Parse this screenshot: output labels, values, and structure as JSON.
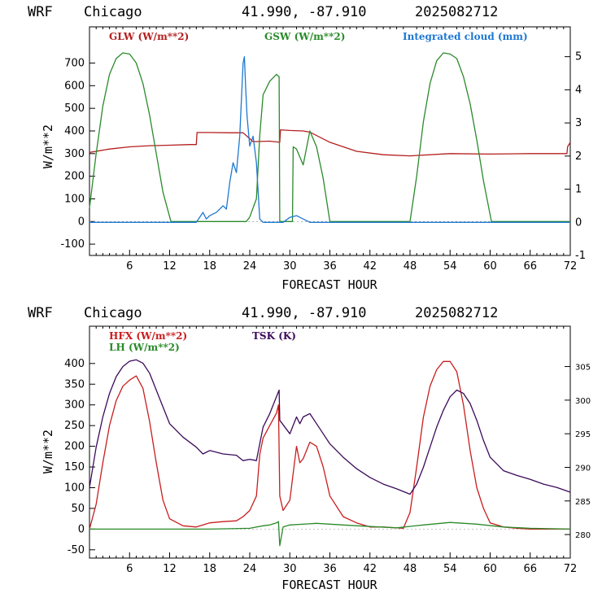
{
  "panel1": {
    "header_model": "WRF",
    "header_city": "Chicago",
    "header_coords": "41.990, -87.910",
    "header_date": "2025082712",
    "legend": {
      "glw": "GLW (W/m**2)",
      "gsw": "GSW (W/m**2)",
      "cloud": "Integrated cloud (mm)"
    },
    "colors": {
      "glw": "#b41e1e",
      "gsw": "#2a8a2a",
      "cloud": "#1e78d2"
    }
  },
  "panel2": {
    "header_model": "WRF",
    "header_city": "Chicago",
    "header_coords": "41.990, -87.910",
    "header_date": "2025082712",
    "legend": {
      "hfx": "HFX (W/m**2)",
      "lh": "LH  (W/m**2)",
      "tsk": "TSK (K)"
    },
    "colors": {
      "hfx": "#c81e1e",
      "lh": "#2a8a2a",
      "tsk": "#3c0a5a"
    }
  },
  "chart_data": [
    {
      "type": "line",
      "xlabel": "FORECAST HOUR",
      "ylabel": "W/m**2",
      "xlim": [
        0,
        72
      ],
      "ylim": [
        -150,
        860
      ],
      "y2lim": [
        -1,
        5.9
      ],
      "xticks": [
        6,
        12,
        18,
        24,
        30,
        36,
        42,
        48,
        54,
        60,
        66,
        72
      ],
      "yticks": [
        -100,
        0,
        100,
        200,
        300,
        400,
        500,
        600,
        700
      ],
      "y2ticks": [
        -1,
        0,
        1,
        2,
        3,
        4,
        5
      ],
      "series": [
        {
          "name": "GLW (W/m**2)",
          "axis": "left",
          "x": [
            0,
            3,
            6,
            9,
            12,
            15,
            16,
            16.1,
            18,
            21,
            23,
            24.5,
            27,
            28.5,
            28.6,
            30,
            32,
            33,
            36,
            40,
            44,
            48,
            54,
            60,
            66,
            71.5,
            71.6,
            72
          ],
          "y": [
            305,
            320,
            330,
            335,
            337,
            340,
            340,
            393,
            393,
            392,
            392,
            353,
            355,
            350,
            405,
            402,
            400,
            395,
            350,
            310,
            295,
            290,
            300,
            298,
            300,
            300,
            330,
            350
          ]
        },
        {
          "name": "GSW (W/m**2)",
          "axis": "left",
          "x": [
            0,
            1,
            2,
            3,
            4,
            5,
            6,
            7,
            8,
            9,
            10,
            11,
            12.2,
            23.5,
            24,
            25,
            25.5,
            26,
            27,
            28,
            28.4,
            28.5,
            29.5,
            30.4,
            30.5,
            31,
            32,
            33,
            34,
            35,
            36,
            48,
            49,
            50,
            51,
            52,
            53,
            54,
            55,
            56,
            57,
            58,
            59,
            60.2,
            72
          ],
          "y": [
            60,
            300,
            510,
            650,
            720,
            745,
            740,
            700,
            610,
            470,
            300,
            130,
            0,
            0,
            20,
            100,
            380,
            560,
            620,
            650,
            640,
            0,
            0,
            0,
            330,
            320,
            250,
            400,
            330,
            190,
            0,
            0,
            200,
            440,
            610,
            710,
            745,
            740,
            720,
            640,
            520,
            360,
            180,
            0,
            0
          ]
        },
        {
          "name": "Integrated cloud (mm)",
          "axis": "right",
          "x": [
            0,
            16,
            17,
            17.5,
            18,
            19,
            20,
            20.5,
            21,
            21.5,
            22,
            22.5,
            23,
            23.2,
            23.4,
            23.6,
            24,
            24.5,
            25,
            25.5,
            26,
            27,
            28,
            29,
            30,
            31,
            32,
            33,
            72
          ],
          "y": [
            0,
            0,
            0.3,
            0.1,
            0.2,
            0.3,
            0.5,
            0.4,
            1.2,
            1.8,
            1.5,
            2.6,
            4.8,
            5.0,
            4.0,
            3.2,
            2.3,
            2.6,
            1.8,
            0.1,
            0,
            0,
            0,
            0,
            0.15,
            0.2,
            0.1,
            0,
            0
          ]
        }
      ]
    },
    {
      "type": "line",
      "xlabel": "FORECAST HOUR",
      "ylabel": "W/m**2",
      "xlim": [
        0,
        72
      ],
      "ylim": [
        -70,
        490
      ],
      "y2lim": [
        276.5,
        311
      ],
      "xticks": [
        6,
        12,
        18,
        24,
        30,
        36,
        42,
        48,
        54,
        60,
        66,
        72
      ],
      "yticks": [
        -50,
        0,
        50,
        100,
        150,
        200,
        250,
        300,
        350,
        400
      ],
      "y2ticks": [
        280,
        285,
        290,
        295,
        300,
        305
      ],
      "series": [
        {
          "name": "HFX (W/m**2)",
          "axis": "left",
          "x": [
            0,
            1,
            2,
            3,
            4,
            5,
            6,
            7,
            8,
            9,
            10,
            11,
            12,
            14,
            16,
            18,
            20,
            22,
            23,
            24,
            25,
            25.5,
            26,
            27,
            28,
            28.3,
            28.5,
            29,
            30,
            31,
            31.5,
            32,
            33,
            34,
            35,
            36,
            38,
            40,
            42,
            44,
            47,
            48,
            49,
            50,
            51,
            52,
            53,
            54,
            55,
            56,
            57,
            58,
            59,
            60,
            62,
            64,
            66,
            68,
            72
          ],
          "y": [
            0,
            60,
            160,
            250,
            310,
            345,
            360,
            370,
            340,
            260,
            160,
            70,
            25,
            8,
            5,
            15,
            18,
            20,
            30,
            45,
            80,
            180,
            220,
            250,
            280,
            300,
            80,
            45,
            70,
            200,
            160,
            170,
            210,
            200,
            150,
            80,
            30,
            15,
            5,
            5,
            2,
            40,
            150,
            270,
            345,
            385,
            405,
            405,
            380,
            300,
            190,
            100,
            50,
            15,
            5,
            2,
            0,
            0,
            0
          ]
        },
        {
          "name": "LH  (W/m**2)",
          "axis": "left",
          "x": [
            0,
            6,
            12,
            18,
            24,
            26,
            27,
            28,
            28.3,
            28.5,
            29,
            30,
            34,
            40,
            46,
            50,
            54,
            58,
            62,
            66,
            72
          ],
          "y": [
            0,
            0,
            0,
            0,
            2,
            8,
            10,
            15,
            18,
            -40,
            5,
            10,
            14,
            8,
            3,
            10,
            16,
            12,
            5,
            2,
            0
          ]
        },
        {
          "name": "TSK (K)",
          "axis": "right",
          "x": [
            0,
            1,
            2,
            3,
            4,
            5,
            6,
            7,
            8,
            9,
            10,
            11,
            12,
            14,
            16,
            17,
            18,
            20,
            22,
            23,
            24,
            25,
            26,
            27,
            28,
            28.4,
            28.5,
            30,
            31,
            31.5,
            32,
            33,
            34,
            35,
            36,
            38,
            40,
            42,
            44,
            46,
            48,
            49,
            50,
            51,
            52,
            53,
            54,
            55,
            56,
            57,
            58,
            59,
            60,
            62,
            64,
            66,
            68,
            70,
            72
          ],
          "y": [
            287,
            293,
            297.5,
            301,
            303.5,
            305,
            305.8,
            306,
            305.5,
            304,
            301.5,
            299,
            296.5,
            294.5,
            293,
            292,
            292.5,
            292,
            291.8,
            291,
            291.2,
            291,
            296,
            298,
            300.5,
            301.5,
            297,
            295,
            297.5,
            296.5,
            297.5,
            298,
            296.5,
            295,
            293.5,
            291.5,
            289.8,
            288.5,
            287.5,
            286.8,
            286,
            287.5,
            290,
            293,
            296,
            298.5,
            300.5,
            301.5,
            301,
            299.5,
            297,
            294,
            291.5,
            289.5,
            288.8,
            288.2,
            287.5,
            287,
            286.3
          ]
        }
      ]
    }
  ]
}
